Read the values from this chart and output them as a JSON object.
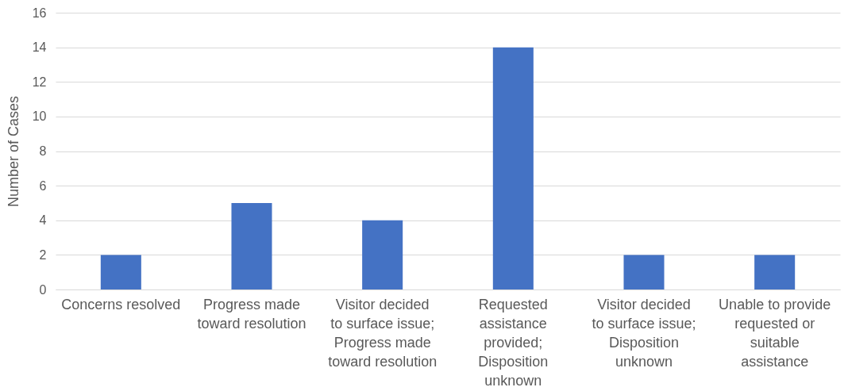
{
  "chart_data": {
    "type": "bar",
    "ylabel": "Number of Cases",
    "categories": [
      "Concerns resolved",
      "Progress made toward resolution",
      "Visitor decided to surface issue; Progress made toward resolution",
      "Requested assistance provided; Disposition unknown",
      "Visitor decided to surface issue; Disposition unknown",
      "Unable to provide requested or suitable assistance"
    ],
    "values": [
      2,
      5,
      4,
      14,
      2,
      2
    ],
    "color": "#4472c4",
    "ylim": [
      0,
      16
    ],
    "yticks": [
      0,
      2,
      4,
      6,
      8,
      10,
      12,
      14,
      16
    ],
    "grid": "y"
  }
}
